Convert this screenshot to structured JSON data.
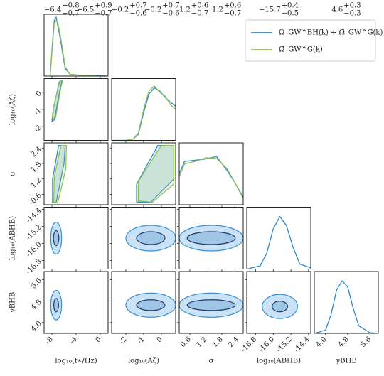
{
  "chart_data": {
    "type": "corner",
    "series": [
      {
        "name": "Ω_GW^BH(k) + Ω̄_GW^G(k)",
        "color": "#2f86cc"
      },
      {
        "name": "Ω̄_GW^G(k)",
        "color": "#8cc152"
      }
    ],
    "contour_fills": [
      "#c9e2f5",
      "#9fc6e7"
    ],
    "contour_strokes": [
      "#3a8fd2",
      "#1f3b66"
    ],
    "density_lim": [
      0,
      1
    ],
    "params": [
      {
        "label": "log₁₀(f∗/Hz)",
        "lim": [
          -9.3,
          1.3
        ],
        "ticks": [
          -8,
          -4,
          0
        ]
      },
      {
        "label": "log₁₀(Aζ)",
        "lim": [
          -2.8,
          0.8
        ],
        "ticks": [
          -2,
          -1,
          0
        ]
      },
      {
        "label": "σ",
        "lim": [
          0.2,
          2.6
        ],
        "ticks": [
          0.6,
          1.2,
          1.8,
          2.4
        ]
      },
      {
        "label": "log₁₀(ABHB)",
        "lim": [
          -17.2,
          -14.3
        ],
        "ticks": [
          -16.8,
          {
            "value": -16,
            "label": "-16.0"
          },
          -15.2,
          -14.4
        ]
      },
      {
        "label": "γBHB",
        "lim": [
          3.6,
          5.9
        ],
        "ticks": [
          {
            "value": 4,
            "label": "4.0"
          },
          4.8,
          5.6
        ]
      }
    ],
    "diagonals": [
      {
        "titles": [
          {
            "text": "−6.4",
            "plus": "+0.8",
            "minus": "−0.7"
          },
          {
            "text": "−6.5",
            "plus": "+0.9",
            "minus": "−0.7"
          }
        ],
        "x": [
          -8.3,
          -7.9,
          -7.6,
          -7.3,
          -7.0,
          -6.6,
          -6.2,
          -5.8,
          -5,
          -3,
          0,
          1
        ],
        "series": [
          {
            "values": [
              0,
              0.55,
              0.9,
              0.95,
              0.8,
              0.6,
              0.35,
              0.12,
              0.03,
              0.01,
              0.01,
              0
            ]
          },
          {
            "values": [
              0,
              0.5,
              0.85,
              0.9,
              0.85,
              0.65,
              0.4,
              0.15,
              0.03,
              0.01,
              0,
              0
            ]
          }
        ]
      },
      {
        "titles": [
          {
            "text": "−0.2",
            "plus": "+0.7",
            "minus": "−0.6"
          },
          {
            "text": "−0.2",
            "plus": "+0.7",
            "minus": "−0.6"
          }
        ],
        "x": [
          -2.8,
          -2,
          -1.6,
          -1.3,
          -1.0,
          -0.7,
          -0.4,
          -0.1,
          0.2,
          0.5,
          0.8
        ],
        "series": [
          {
            "values": [
              0,
              0,
              0.02,
              0.1,
              0.45,
              0.75,
              0.85,
              0.8,
              0.7,
              0.62,
              0.55
            ]
          },
          {
            "values": [
              0,
              0,
              0.02,
              0.12,
              0.5,
              0.8,
              0.88,
              0.78,
              0.72,
              0.58,
              0.5
            ]
          }
        ]
      },
      {
        "titles": [
          {
            "text": "1.2",
            "plus": "+0.6",
            "minus": "−0.7"
          },
          {
            "text": "1.2",
            "plus": "+0.6",
            "minus": "−0.7"
          }
        ],
        "x": [
          0.2,
          0.4,
          0.8,
          1.2,
          1.6,
          2.0,
          2.3,
          2.6
        ],
        "series": [
          {
            "values": [
              0.5,
              0.7,
              0.72,
              0.74,
              0.78,
              0.55,
              0.35,
              0.12
            ]
          },
          {
            "values": [
              0.45,
              0.66,
              0.7,
              0.76,
              0.75,
              0.58,
              0.35,
              0.1
            ]
          }
        ]
      },
      {
        "titles": [
          {
            "text": "−15.7",
            "plus": "+0.4",
            "minus": "−0.5"
          }
        ],
        "x": [
          -17.2,
          -16.6,
          -16.3,
          -16.0,
          -15.7,
          -15.4,
          -15.1,
          -14.8,
          -14.3
        ],
        "series": [
          {
            "values": [
              0,
              0.05,
              0.25,
              0.65,
              0.85,
              0.7,
              0.35,
              0.08,
              0.02
            ]
          }
        ]
      },
      {
        "titles": [
          {
            "text": "4.6",
            "plus": "+0.3",
            "minus": "−0.3"
          }
        ],
        "x": [
          3.6,
          4.0,
          4.2,
          4.4,
          4.6,
          4.8,
          5.0,
          5.2,
          5.6,
          5.9
        ],
        "series": [
          {
            "values": [
              0,
              0.05,
              0.3,
              0.7,
              0.85,
              0.75,
              0.4,
              0.12,
              0.01,
              0
            ]
          }
        ]
      }
    ],
    "rows": [
      [
        [
          [
            {
              "x": [
                -8.0,
                -7.6,
                -6.6,
                -6.3,
                -6.8,
                -7.8
              ],
              "y": [
                -1.7,
                -1.6,
                0.3,
                0.7,
                0.6,
                -1.0
              ]
            }
          ],
          [
            {
              "x": [
                -7.9,
                -7.4,
                -6.5,
                -6.2,
                -6.7,
                -7.7
              ],
              "y": [
                -1.5,
                -1.5,
                0.3,
                0.7,
                0.65,
                -0.8
              ]
            }
          ]
        ]
      ],
      [
        [
          [
            {
              "x": [
                -7.9,
                -7.3,
                -6.0,
                -5.8,
                -6.9,
                -7.9
              ],
              "y": [
                0.3,
                0.3,
                1.8,
                2.5,
                2.5,
                1.2
              ]
            }
          ],
          [
            {
              "x": [
                -7.7,
                -7.0,
                -5.7,
                -5.6,
                -6.5,
                -7.6
              ],
              "y": [
                0.3,
                0.3,
                1.6,
                2.5,
                2.5,
                1.3
              ]
            }
          ]
        ],
        [
          [
            {
              "x": [
                -1.4,
                -0.6,
                0.7,
                0.7,
                -0.2,
                -1.4
              ],
              "y": [
                0.3,
                0.3,
                1.2,
                2.5,
                2.5,
                1.0
              ]
            }
          ],
          [
            {
              "x": [
                -1.3,
                -0.5,
                0.7,
                0.7,
                0,
                -1.3
              ],
              "y": [
                0.35,
                0.3,
                1.0,
                2.5,
                2.5,
                1.1
              ]
            }
          ]
        ]
      ],
      [
        [
          [
            {
              "x": -7.3,
              "y": -15.75,
              "dx": 0.9,
              "dy": 0.75
            },
            {
              "x": -7.3,
              "y": -15.75,
              "dx": 0.45,
              "dy": 0.35
            }
          ]
        ],
        [
          [
            {
              "x": -0.6,
              "y": -15.75,
              "dx": 1.4,
              "dy": 0.6
            },
            {
              "x": -0.6,
              "y": -15.75,
              "dx": 0.8,
              "dy": 0.3
            }
          ]
        ],
        [
          [
            {
              "x": 1.4,
              "y": -15.75,
              "dx": 1.2,
              "dy": 0.6
            },
            {
              "x": 1.4,
              "y": -15.75,
              "dx": 0.9,
              "dy": 0.3
            }
          ]
        ]
      ],
      [
        [
          [
            {
              "x": -7.3,
              "y": 4.65,
              "dx": 0.9,
              "dy": 0.55
            },
            {
              "x": -7.3,
              "y": 4.65,
              "dx": 0.4,
              "dy": 0.25
            }
          ]
        ],
        [
          [
            {
              "x": -0.6,
              "y": 4.65,
              "dx": 1.4,
              "dy": 0.45
            },
            {
              "x": -0.6,
              "y": 4.65,
              "dx": 0.8,
              "dy": 0.2
            }
          ]
        ],
        [
          [
            {
              "x": 1.4,
              "y": 4.65,
              "dx": 1.2,
              "dy": 0.45
            },
            {
              "x": 1.4,
              "y": 4.65,
              "dx": 0.9,
              "dy": 0.2
            }
          ]
        ],
        [
          [
            {
              "x": -15.7,
              "y": 4.6,
              "dx": 0.8,
              "dy": 0.45
            },
            {
              "x": -15.7,
              "y": 4.6,
              "dx": 0.35,
              "dy": 0.2
            }
          ]
        ]
      ]
    ]
  }
}
